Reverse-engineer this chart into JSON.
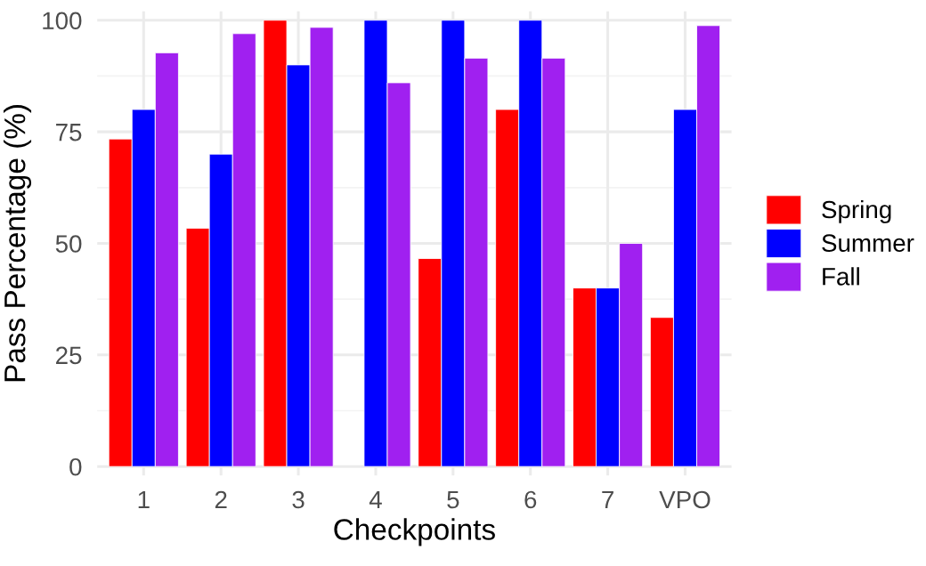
{
  "chart_data": {
    "type": "bar",
    "xlabel": "Checkpoints",
    "ylabel": "Pass Percentage (%)",
    "categories": [
      "1",
      "2",
      "3",
      "4",
      "5",
      "6",
      "7",
      "VPO"
    ],
    "series": [
      {
        "name": "Spring",
        "color": "#ff0000",
        "values": [
          73.4,
          53.4,
          100,
          null,
          46.6,
          80,
          40,
          33.4
        ]
      },
      {
        "name": "Summer",
        "color": "#0000ff",
        "values": [
          80,
          70,
          90,
          100,
          100,
          100,
          40,
          80
        ]
      },
      {
        "name": "Fall",
        "color": "#a020f0",
        "values": [
          92.7,
          97,
          98.4,
          86,
          91.5,
          91.5,
          50,
          98.8
        ]
      }
    ],
    "ylim": [
      -2,
      102
    ],
    "yticks": [
      0,
      25,
      50,
      75,
      100
    ],
    "grid": true,
    "legend": "right"
  }
}
